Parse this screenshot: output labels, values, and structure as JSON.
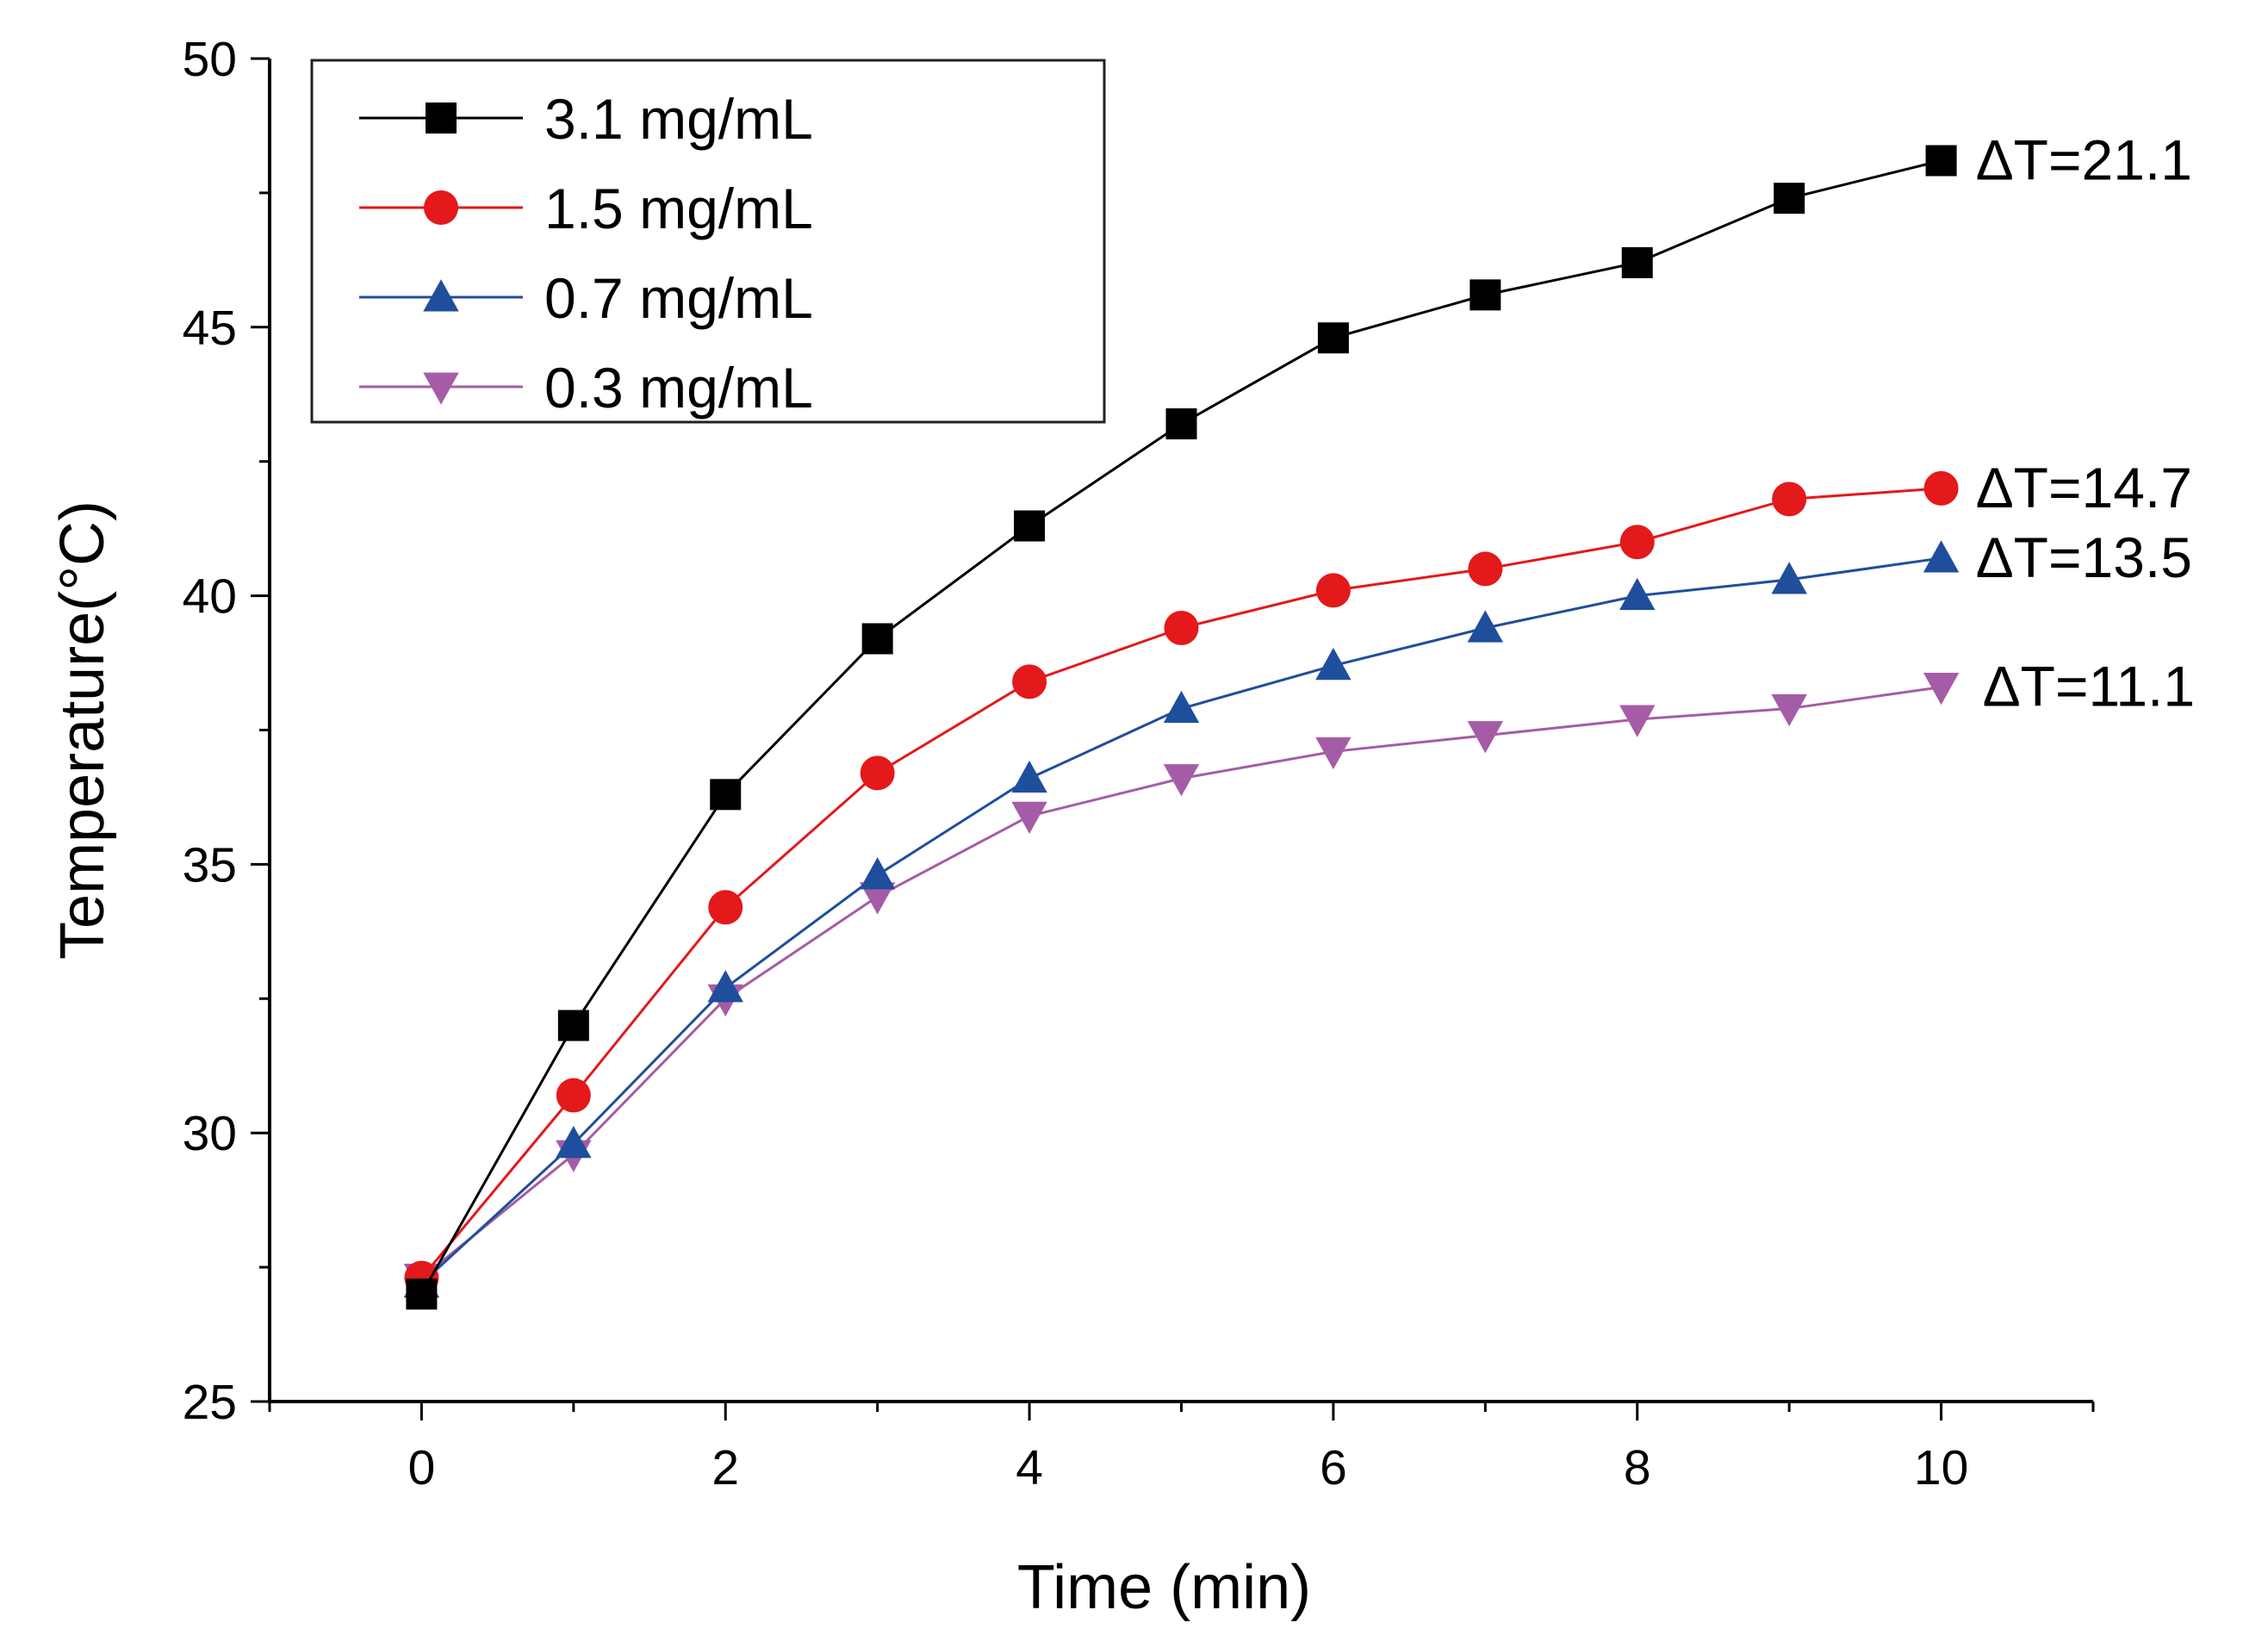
{
  "chart_data": {
    "type": "line",
    "xlabel": "Time (min)",
    "ylabel": "Temperature(°C)",
    "xlim": [
      -1,
      11
    ],
    "ylim": [
      25,
      50
    ],
    "x_ticks": [
      0,
      2,
      4,
      6,
      8,
      10
    ],
    "y_ticks": [
      25,
      30,
      35,
      40,
      45,
      50
    ],
    "grid": false,
    "legend_position": "top-left",
    "x": [
      0,
      1,
      2,
      3,
      4,
      5,
      6,
      7,
      8,
      9,
      10
    ],
    "series": [
      {
        "name": "3.1 mg/mL",
        "marker": "square",
        "color": "#000000",
        "values": [
          27.0,
          32.0,
          36.3,
          39.2,
          41.3,
          43.2,
          44.8,
          45.6,
          46.2,
          47.4,
          48.1
        ],
        "annotation": "ΔT=21.1"
      },
      {
        "name": "1.5 mg/mL",
        "marker": "circle",
        "color": "#e3191b",
        "values": [
          27.3,
          30.7,
          34.2,
          36.7,
          38.4,
          39.4,
          40.1,
          40.5,
          41.0,
          41.8,
          42.0
        ],
        "annotation": "ΔT=14.7"
      },
      {
        "name": "0.7 mg/mL",
        "marker": "triangle-up",
        "color": "#1f4e9c",
        "values": [
          27.2,
          29.8,
          32.7,
          34.8,
          36.6,
          37.9,
          38.7,
          39.4,
          40.0,
          40.3,
          40.7
        ],
        "annotation": "ΔT=13.5"
      },
      {
        "name": "0.3 mg/mL",
        "marker": "triangle-down",
        "color": "#a55ca6",
        "values": [
          27.3,
          29.6,
          32.5,
          34.4,
          35.9,
          36.6,
          37.1,
          37.4,
          37.7,
          37.9,
          38.3
        ],
        "annotation": "ΔT=11.1"
      }
    ]
  }
}
